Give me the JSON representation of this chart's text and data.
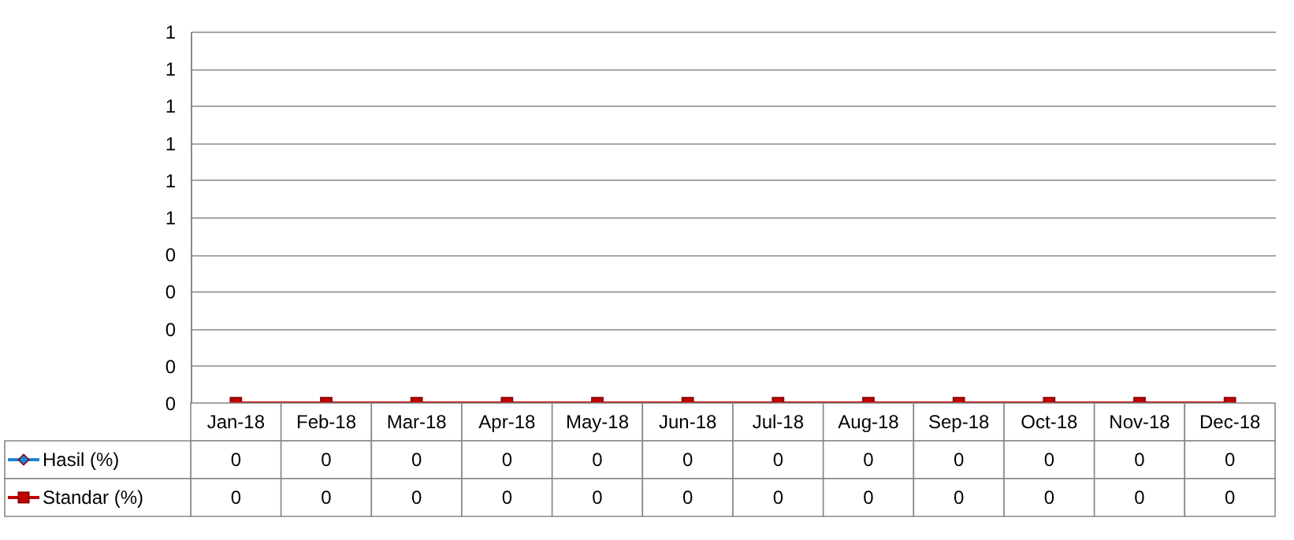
{
  "chart_data": {
    "type": "line",
    "categories": [
      "Jan-18",
      "Feb-18",
      "Mar-18",
      "Apr-18",
      "May-18",
      "Jun-18",
      "Jul-18",
      "Aug-18",
      "Sep-18",
      "Oct-18",
      "Nov-18",
      "Dec-18"
    ],
    "series": [
      {
        "name": "Hasil (%)",
        "color": "#1f86d6",
        "marker": "diamond",
        "values": [
          null,
          null,
          null,
          null,
          null,
          null,
          null,
          null,
          null,
          null,
          null,
          null
        ],
        "value_labels": [
          "0",
          "0",
          "0",
          "0",
          "0",
          "0",
          "0",
          "0",
          "0",
          "0",
          "0",
          "0"
        ]
      },
      {
        "name": "Standar (%)",
        "color": "#c00000",
        "marker": "square",
        "values": [
          0,
          0,
          0,
          0,
          0,
          0,
          0,
          0,
          0,
          0,
          0,
          0
        ],
        "value_labels": [
          "0",
          "0",
          "0",
          "0",
          "0",
          "0",
          "0",
          "0",
          "0",
          "0",
          "0",
          "0"
        ]
      }
    ],
    "ylim": [
      0,
      1
    ],
    "yticks": [
      0,
      {
        "value": 0.1,
        "label": "0"
      },
      {
        "value": 0.2,
        "label": "0"
      },
      {
        "value": 0.3,
        "label": "0"
      },
      {
        "value": 0.4,
        "label": "0"
      },
      {
        "value": 0.5,
        "label": "1"
      },
      {
        "value": 0.6,
        "label": "1"
      },
      {
        "value": 0.7,
        "label": "1"
      },
      {
        "value": 0.8,
        "label": "1"
      },
      {
        "value": 0.9,
        "label": "1"
      },
      1
    ],
    "grid": "y",
    "legend": "bottom left",
    "line_style": "solid"
  }
}
